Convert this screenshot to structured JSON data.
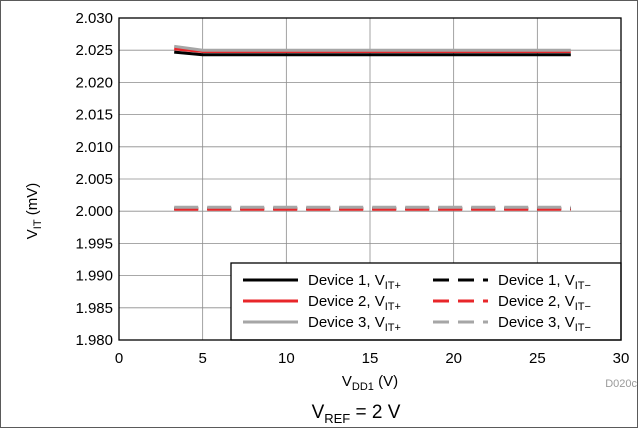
{
  "chart_data": {
    "type": "line",
    "xlabel": {
      "main": "V",
      "sub": "DD1",
      "unit": " (V)"
    },
    "ylabel": {
      "main": "V",
      "sub": "IT",
      "unit": " (mV)"
    },
    "xlim": [
      0,
      30
    ],
    "ylim": [
      1.98,
      2.03
    ],
    "x_ticks": [
      0,
      5,
      10,
      15,
      20,
      25,
      30
    ],
    "x_tick_labels": [
      "0",
      "5",
      "10",
      "15",
      "20",
      "25",
      "30"
    ],
    "y_ticks": [
      1.98,
      1.985,
      1.99,
      1.995,
      2.0,
      2.005,
      2.01,
      2.015,
      2.02,
      2.025,
      2.03
    ],
    "y_tick_labels": [
      "1.980",
      "1.985",
      "1.990",
      "1.995",
      "2.000",
      "2.005",
      "2.010",
      "2.015",
      "2.020",
      "2.025",
      "2.030"
    ],
    "grid": true,
    "legend_position": "bottom-right",
    "series": [
      {
        "name": "Device 1, V",
        "sub": "IT+",
        "color": "#000000",
        "dash": "solid",
        "x": [
          3.3,
          5,
          10,
          15,
          20,
          25,
          27
        ],
        "y": [
          2.0247,
          2.0243,
          2.0243,
          2.0243,
          2.0243,
          2.0243,
          2.0243
        ]
      },
      {
        "name": "Device 1, V",
        "sub": "IT−",
        "color": "#000000",
        "dash": "dashed",
        "x": [
          3.3,
          5,
          10,
          15,
          20,
          25,
          27
        ],
        "y": [
          2.0004,
          2.0004,
          2.0004,
          2.0004,
          2.0004,
          2.0004,
          2.0004
        ]
      },
      {
        "name": "Device 2, V",
        "sub": "IT+",
        "color": "#e8262a",
        "dash": "solid",
        "x": [
          3.3,
          5,
          10,
          15,
          20,
          25,
          27
        ],
        "y": [
          2.0252,
          2.0248,
          2.0248,
          2.0248,
          2.0248,
          2.0248,
          2.0248
        ]
      },
      {
        "name": "Device 2, V",
        "sub": "IT−",
        "color": "#e8262a",
        "dash": "dashed",
        "x": [
          3.3,
          5,
          10,
          15,
          20,
          25,
          27
        ],
        "y": [
          2.0003,
          2.0003,
          2.0003,
          2.0003,
          2.0003,
          2.0003,
          2.0003
        ]
      },
      {
        "name": "Device 3, V",
        "sub": "IT+",
        "color": "#a6a6a6",
        "dash": "solid",
        "x": [
          3.3,
          5,
          10,
          15,
          20,
          25,
          27
        ],
        "y": [
          2.0256,
          2.025,
          2.025,
          2.025,
          2.025,
          2.025,
          2.025
        ]
      },
      {
        "name": "Device 3, V",
        "sub": "IT−",
        "color": "#a6a6a6",
        "dash": "dashed",
        "x": [
          3.3,
          5,
          10,
          15,
          20,
          25,
          27
        ],
        "y": [
          2.0006,
          2.0006,
          2.0006,
          2.0006,
          2.0006,
          2.0006,
          2.0006
        ]
      }
    ],
    "annotations": {
      "figure_code": "D020c",
      "condition": {
        "main": "V",
        "sub": "REF",
        "rest": " = 2 V"
      }
    }
  }
}
